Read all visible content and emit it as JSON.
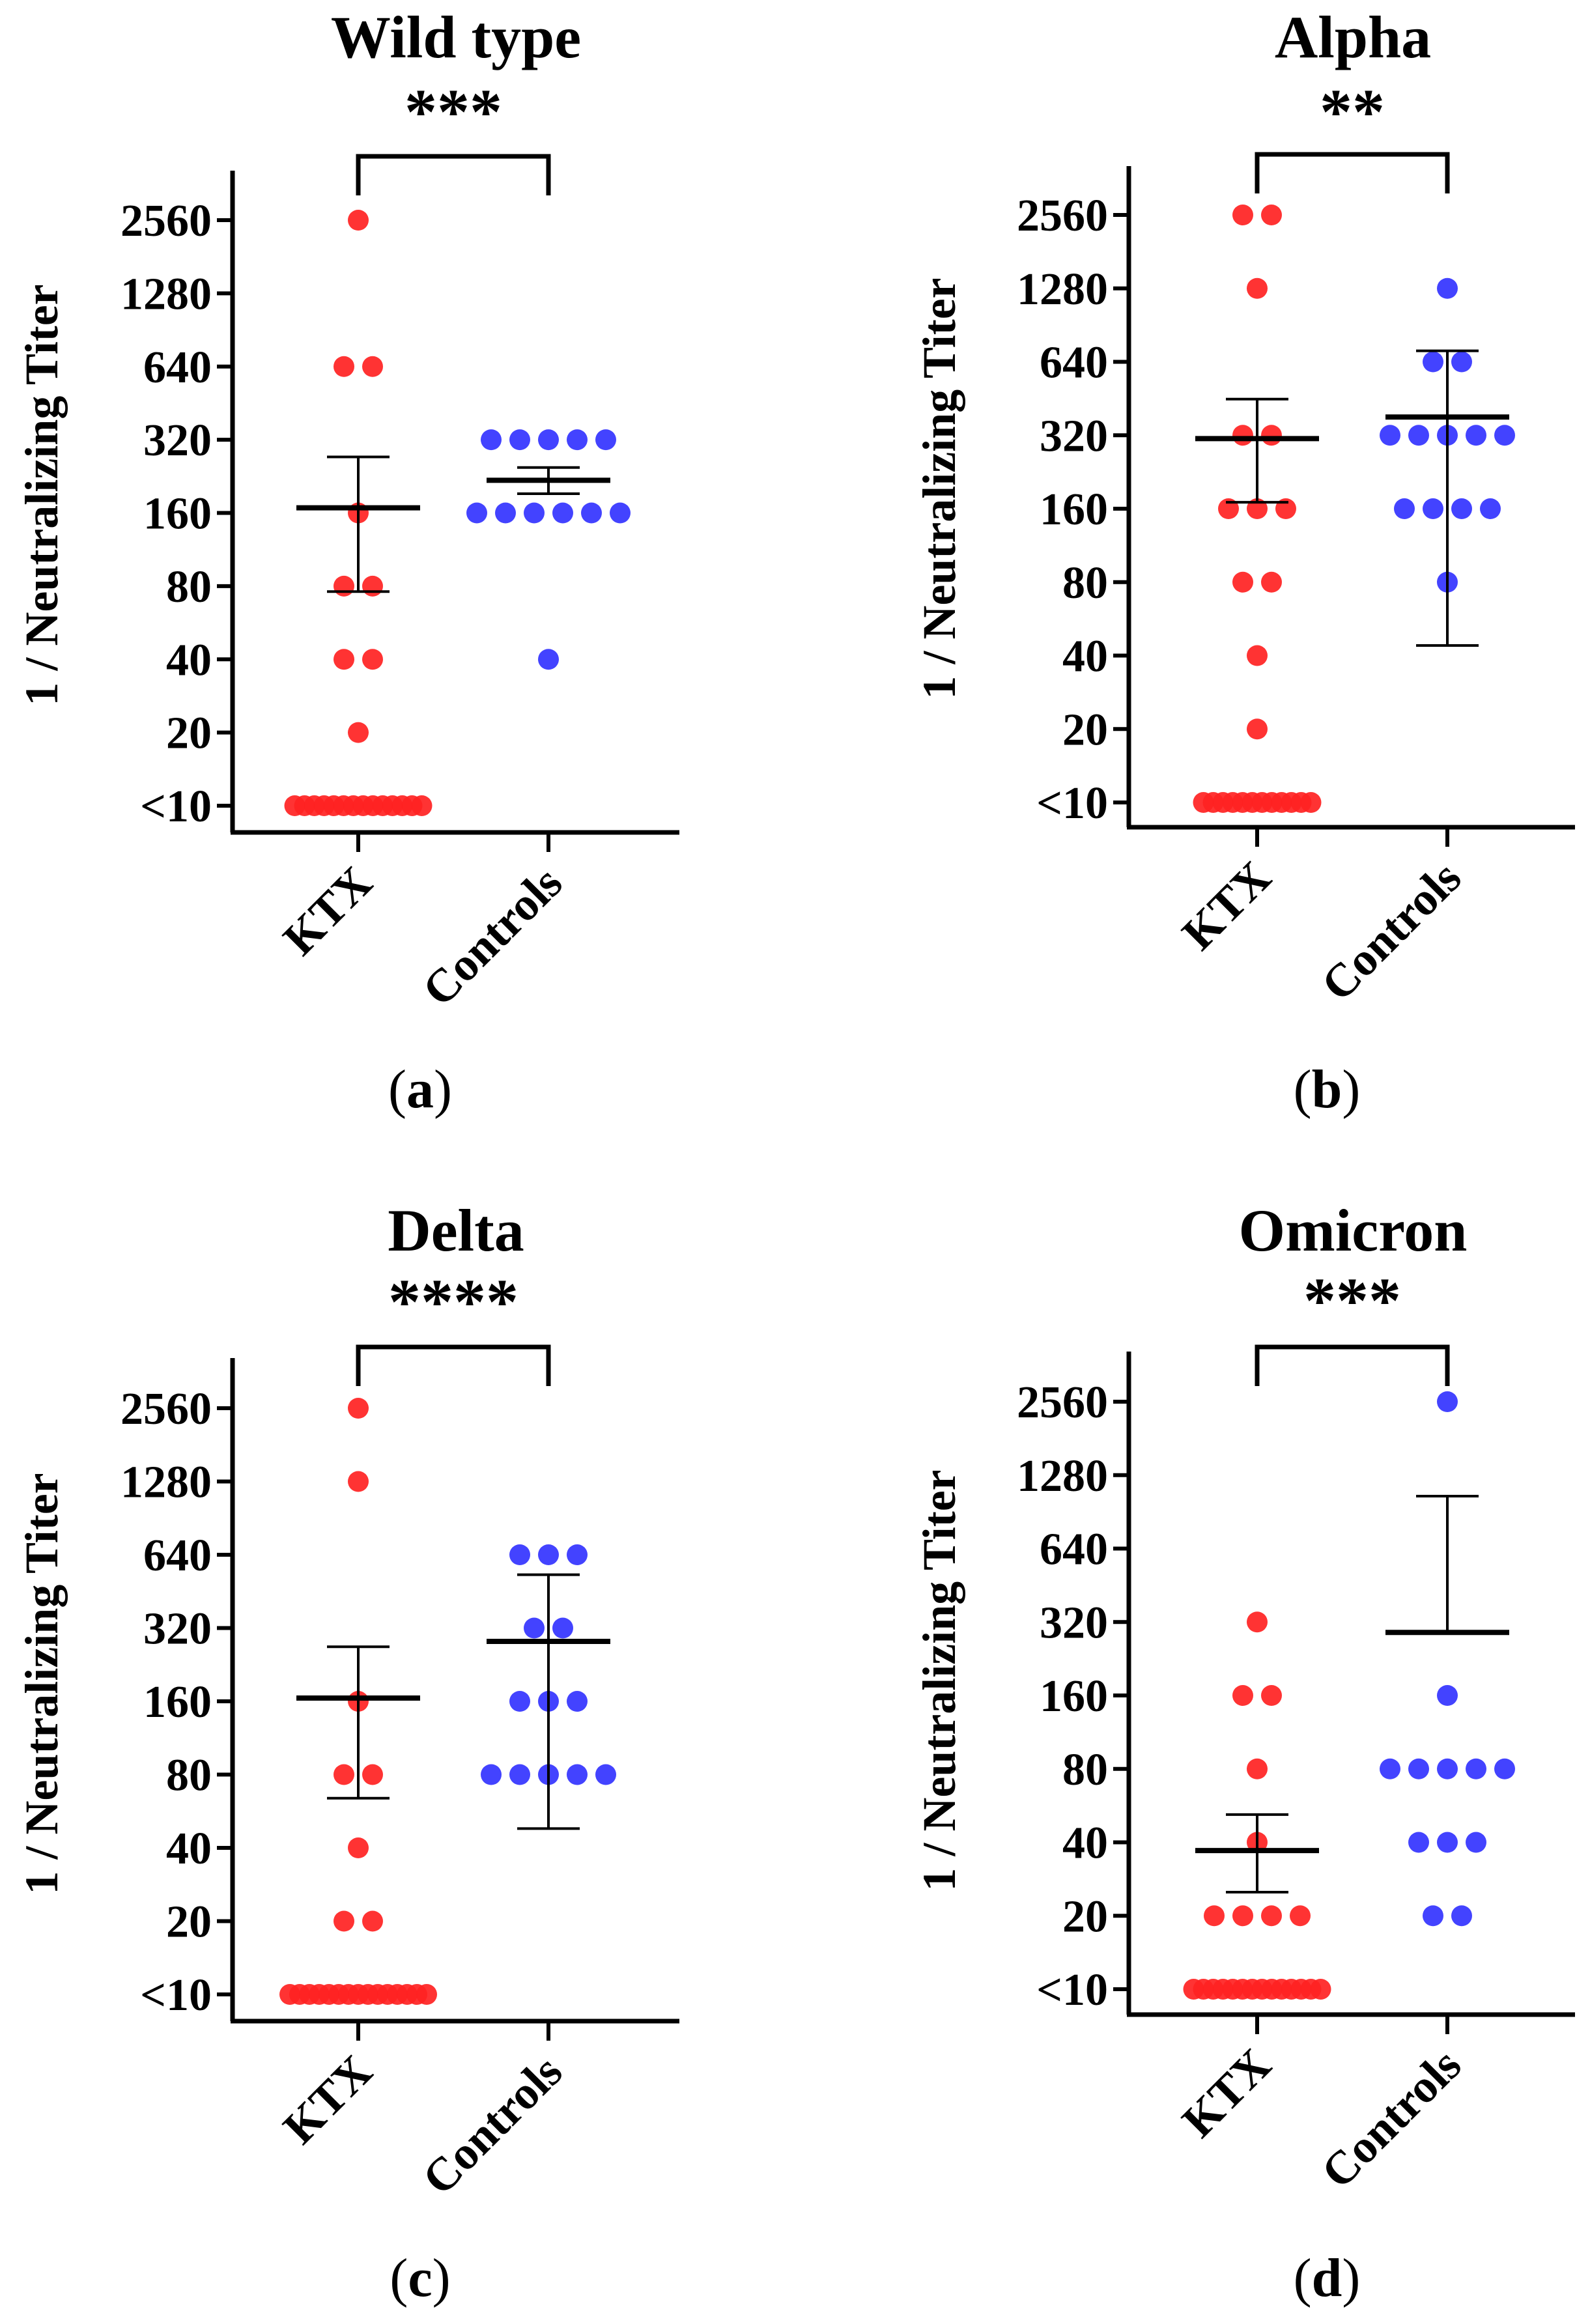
{
  "chart_data": [
    {
      "type": "scatter",
      "panel_label": "a",
      "title": "Wild type",
      "significance": "***",
      "ylabel": "1 / Neutralizing Titer",
      "yscale": "log2",
      "yticks": [
        10,
        20,
        40,
        80,
        160,
        320,
        640,
        1280,
        2560
      ],
      "ytick_labels": [
        "<10",
        "20",
        "40",
        "80",
        "160",
        "320",
        "640",
        "1280",
        "2560"
      ],
      "ylim": [
        8,
        4000
      ],
      "categories": [
        "KTX",
        "Controls"
      ],
      "series": [
        {
          "name": "KTX",
          "color": "#ff2222",
          "values": [
            2560,
            640,
            640,
            160,
            80,
            80,
            40,
            40,
            20,
            10,
            10,
            10,
            10,
            10,
            10,
            10,
            10,
            10,
            10,
            10,
            10,
            10,
            10
          ],
          "mean": 168,
          "err_low": 76,
          "err_high": 272
        },
        {
          "name": "Controls",
          "color": "#3333ff",
          "values": [
            320,
            320,
            320,
            320,
            320,
            160,
            160,
            160,
            160,
            160,
            160,
            40
          ],
          "mean": 218,
          "err_low": 192,
          "err_high": 246
        }
      ]
    },
    {
      "type": "scatter",
      "panel_label": "b",
      "title": "Alpha",
      "significance": "**",
      "ylabel": "1 / Neutralizing Titer",
      "yscale": "log2",
      "yticks": [
        10,
        20,
        40,
        80,
        160,
        320,
        640,
        1280,
        2560
      ],
      "ytick_labels": [
        "<10",
        "20",
        "40",
        "80",
        "160",
        "320",
        "640",
        "1280",
        "2560"
      ],
      "ylim": [
        8,
        4000
      ],
      "categories": [
        "KTX",
        "Controls"
      ],
      "series": [
        {
          "name": "KTX",
          "color": "#ff2222",
          "values": [
            2560,
            2560,
            1280,
            320,
            320,
            160,
            160,
            160,
            80,
            80,
            40,
            20,
            10,
            10,
            10,
            10,
            10,
            10,
            10,
            10,
            10,
            10,
            10,
            10
          ],
          "mean": 310,
          "err_low": 170,
          "err_high": 450
        },
        {
          "name": "Controls",
          "color": "#3333ff",
          "values": [
            1280,
            640,
            640,
            320,
            320,
            320,
            320,
            320,
            160,
            160,
            160,
            160,
            80
          ],
          "mean": 380,
          "err_low": 44,
          "err_high": 710
        }
      ]
    },
    {
      "type": "scatter",
      "panel_label": "c",
      "title": "Delta",
      "significance": "****",
      "ylabel": "1 / Neutralizing Titer",
      "yscale": "log2",
      "yticks": [
        10,
        20,
        40,
        80,
        160,
        320,
        640,
        1280,
        2560
      ],
      "ytick_labels": [
        "<10",
        "20",
        "40",
        "80",
        "160",
        "320",
        "640",
        "1280",
        "2560"
      ],
      "ylim": [
        8,
        4000
      ],
      "categories": [
        "KTX",
        "Controls"
      ],
      "series": [
        {
          "name": "KTX",
          "color": "#ff2222",
          "values": [
            2560,
            1280,
            160,
            80,
            80,
            40,
            20,
            20,
            10,
            10,
            10,
            10,
            10,
            10,
            10,
            10,
            10,
            10,
            10,
            10,
            10,
            10,
            10
          ],
          "mean": 165,
          "err_low": 64,
          "err_high": 268
        },
        {
          "name": "Controls",
          "color": "#3333ff",
          "values": [
            640,
            640,
            640,
            320,
            320,
            160,
            160,
            160,
            80,
            80,
            80,
            80,
            80
          ],
          "mean": 282,
          "err_low": 48,
          "err_high": 530
        }
      ]
    },
    {
      "type": "scatter",
      "panel_label": "d",
      "title": "Omicron",
      "significance": "***",
      "ylabel": "1 / Neutralizing Titer",
      "yscale": "log2",
      "yticks": [
        10,
        20,
        40,
        80,
        160,
        320,
        640,
        1280,
        2560
      ],
      "ytick_labels": [
        "<10",
        "20",
        "40",
        "80",
        "160",
        "320",
        "640",
        "1280",
        "2560"
      ],
      "ylim": [
        8,
        4000
      ],
      "categories": [
        "KTX",
        "Controls"
      ],
      "series": [
        {
          "name": "KTX",
          "color": "#ff2222",
          "values": [
            320,
            160,
            160,
            80,
            40,
            20,
            20,
            20,
            20,
            10,
            10,
            10,
            10,
            10,
            10,
            10,
            10,
            10,
            10,
            10,
            10,
            10,
            10
          ],
          "mean": 37,
          "err_low": 25,
          "err_high": 52
        },
        {
          "name": "Controls",
          "color": "#3333ff",
          "values": [
            2560,
            160,
            80,
            80,
            80,
            80,
            80,
            40,
            40,
            40,
            20,
            20
          ],
          "mean": 290,
          "err_low": 0,
          "err_high": 1050
        }
      ]
    }
  ]
}
